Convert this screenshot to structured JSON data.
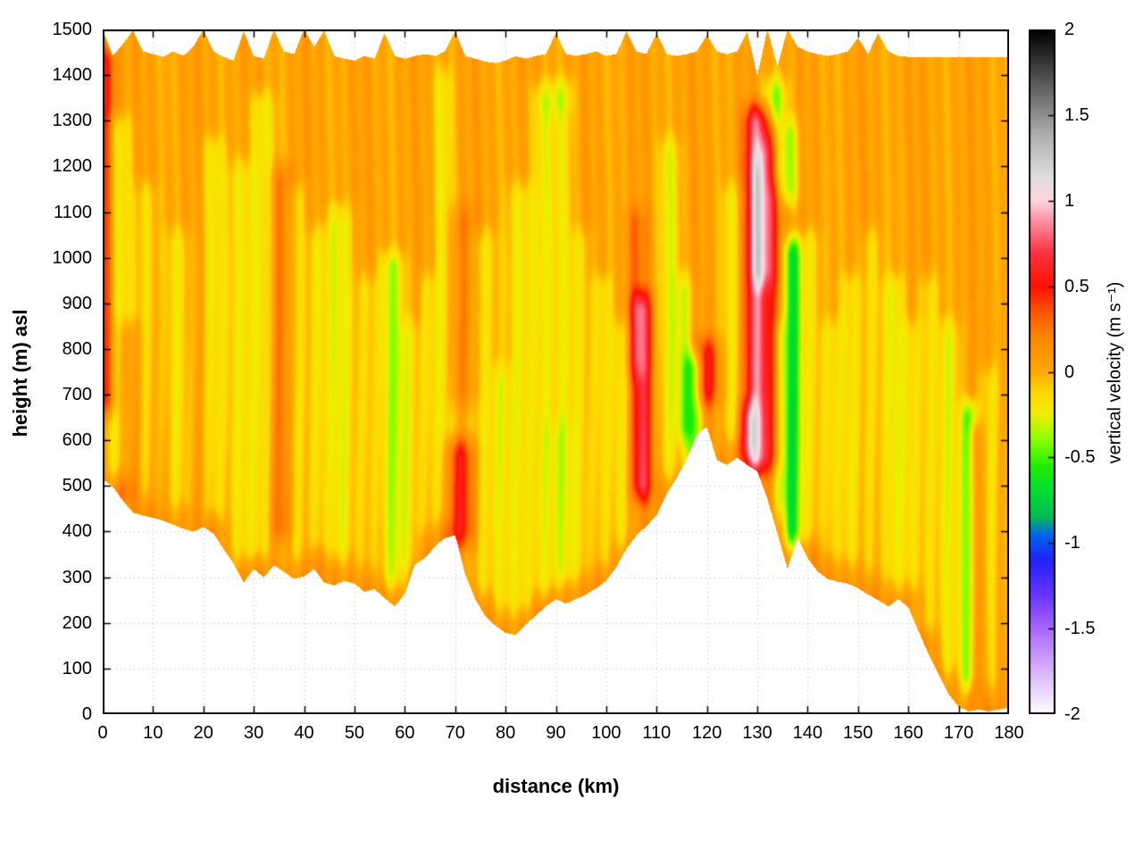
{
  "figure": {
    "background": "#ffffff"
  },
  "chart_data": {
    "type": "heatmap",
    "title": "",
    "xlabel": "distance (km)",
    "ylabel": "height (m) asl",
    "zlabel": "vertical velocity (m s⁻¹)",
    "xlim": [
      0,
      180
    ],
    "ylim": [
      0,
      1500
    ],
    "zlim": [
      -2,
      2
    ],
    "xticks": [
      0,
      10,
      20,
      30,
      40,
      50,
      60,
      70,
      80,
      90,
      100,
      110,
      120,
      130,
      140,
      150,
      160,
      170,
      180
    ],
    "yticks": [
      0,
      100,
      200,
      300,
      400,
      500,
      600,
      700,
      800,
      900,
      1000,
      1100,
      1200,
      1300,
      1400,
      1500
    ],
    "cticks": [
      -2,
      -1.5,
      -1,
      -0.5,
      0,
      0.5,
      1,
      1.5,
      2
    ],
    "grid": true,
    "grid_color": "#bdbdbd",
    "border_color": "#000000",
    "palette": [
      [
        -2.0,
        "#ffffff"
      ],
      [
        -1.75,
        "#d9b3ff"
      ],
      [
        -1.5,
        "#aa66ff"
      ],
      [
        -1.3,
        "#6633ff"
      ],
      [
        -1.1,
        "#2222ff"
      ],
      [
        -0.95,
        "#0066ee"
      ],
      [
        -0.85,
        "#00bb55"
      ],
      [
        -0.7,
        "#00dd33"
      ],
      [
        -0.55,
        "#22ee00"
      ],
      [
        -0.4,
        "#88ff00"
      ],
      [
        -0.25,
        "#f0ee00"
      ],
      [
        -0.12,
        "#ffd700"
      ],
      [
        0.0,
        "#ffaa00"
      ],
      [
        0.2,
        "#ff8800"
      ],
      [
        0.35,
        "#ff5500"
      ],
      [
        0.5,
        "#ff1100"
      ],
      [
        0.7,
        "#ff3344"
      ],
      [
        0.9,
        "#ff99aa"
      ],
      [
        1.0,
        "#ffd5e0"
      ],
      [
        1.15,
        "#dddddd"
      ],
      [
        1.4,
        "#aaaaaa"
      ],
      [
        1.7,
        "#555555"
      ],
      [
        2.0,
        "#000000"
      ]
    ],
    "base_value": 0.04,
    "texture_amp": 0.05,
    "surface_layer_amp": 0.08,
    "surface_layer_depth": 160,
    "profile_step": 2,
    "terrain": [
      515,
      498,
      468,
      442,
      435,
      430,
      424,
      415,
      406,
      400,
      410,
      396,
      362,
      330,
      288,
      318,
      300,
      326,
      312,
      296,
      302,
      318,
      288,
      282,
      292,
      286,
      268,
      274,
      254,
      236,
      264,
      328,
      342,
      368,
      386,
      392,
      306,
      252,
      214,
      194,
      178,
      174,
      196,
      216,
      236,
      252,
      242,
      252,
      262,
      276,
      292,
      322,
      362,
      392,
      412,
      436,
      482,
      518,
      558,
      612,
      630,
      556,
      546,
      562,
      546,
      532,
      472,
      396,
      318,
      386,
      342,
      312,
      296,
      290,
      286,
      276,
      262,
      250,
      236,
      252,
      234,
      182,
      132,
      88,
      44,
      16,
      6,
      10,
      6,
      10,
      14
    ],
    "top": [
      1500,
      1442,
      1468,
      1498,
      1452,
      1446,
      1440,
      1452,
      1442,
      1462,
      1500,
      1452,
      1440,
      1432,
      1496,
      1442,
      1436,
      1500,
      1452,
      1446,
      1500,
      1462,
      1498,
      1442,
      1436,
      1432,
      1442,
      1436,
      1492,
      1442,
      1436,
      1442,
      1446,
      1442,
      1452,
      1496,
      1442,
      1436,
      1430,
      1426,
      1432,
      1442,
      1436,
      1442,
      1446,
      1492,
      1446,
      1442,
      1446,
      1452,
      1442,
      1446,
      1496,
      1452,
      1446,
      1492,
      1446,
      1442,
      1446,
      1452,
      1488,
      1452,
      1446,
      1452,
      1496,
      1398,
      1500,
      1420,
      1500,
      1462,
      1452,
      1446,
      1442,
      1446,
      1452,
      1482,
      1446,
      1492,
      1452,
      1442,
      1440,
      1440,
      1440,
      1440,
      1440,
      1440,
      1440,
      1440,
      1440,
      1440,
      1438
    ],
    "features": [
      {
        "x": 0.6,
        "z0": 620,
        "z1": 1500,
        "w": 1.4,
        "a": 0.5
      },
      {
        "x": 5,
        "z0": 420,
        "z1": 900,
        "w": 1.8,
        "a": 0.22
      },
      {
        "x": 35.5,
        "z0": 340,
        "z1": 1240,
        "w": 1.6,
        "a": 0.28
      },
      {
        "x": 71,
        "z0": 330,
        "z1": 640,
        "w": 2.0,
        "a": 0.5
      },
      {
        "x": 71.5,
        "z0": 640,
        "z1": 1150,
        "w": 2.2,
        "a": 0.18
      },
      {
        "x": 107,
        "z0": 430,
        "z1": 960,
        "w": 1.4,
        "a": 0.62
      },
      {
        "x": 106,
        "z0": 700,
        "z1": 1150,
        "w": 1.6,
        "a": 0.22
      },
      {
        "x": 120,
        "z0": 640,
        "z1": 860,
        "w": 1.8,
        "a": 0.45
      },
      {
        "x": 130,
        "z0": 490,
        "z1": 1370,
        "w": 1.8,
        "a": 0.75
      },
      {
        "x": 130,
        "z0": 900,
        "z1": 1250,
        "w": 0.9,
        "a": 0.2
      },
      {
        "x": 128.5,
        "z0": 520,
        "z1": 720,
        "w": 1.4,
        "a": 0.4
      },
      {
        "x": 131.5,
        "z0": 900,
        "z1": 1300,
        "w": 1.6,
        "a": 0.3
      },
      {
        "x": 133.5,
        "z0": 500,
        "z1": 1200,
        "w": 1.2,
        "a": 0.25
      },
      {
        "x": 90.5,
        "z0": 600,
        "z1": 1350,
        "w": 2.0,
        "a": 0.12
      },
      {
        "x": 173.2,
        "z0": 0,
        "z1": 680,
        "w": 1.0,
        "a": 0.35
      },
      {
        "x": 117.3,
        "z0": 500,
        "z1": 830,
        "w": 1.2,
        "a": -0.6
      },
      {
        "x": 137,
        "z0": 330,
        "z1": 1080,
        "w": 1.2,
        "a": -0.7
      },
      {
        "x": 136.2,
        "z0": 1080,
        "z1": 1340,
        "w": 1.4,
        "a": -0.4
      },
      {
        "x": 172.1,
        "z0": 10,
        "z1": 720,
        "w": 1.1,
        "a": -0.62
      },
      {
        "x": 133.6,
        "z0": 1260,
        "z1": 1430,
        "w": 1.6,
        "a": -0.4
      },
      {
        "x": 3,
        "z0": 480,
        "z1": 1350,
        "w": 2.0,
        "a": -0.3
      },
      {
        "x": 8.5,
        "z0": 430,
        "z1": 1200,
        "w": 1.6,
        "a": -0.22
      },
      {
        "x": 15,
        "z0": 410,
        "z1": 1100,
        "w": 1.8,
        "a": -0.2
      },
      {
        "x": 22,
        "z0": 390,
        "z1": 1300,
        "w": 1.6,
        "a": -0.25
      },
      {
        "x": 27.5,
        "z0": 300,
        "z1": 1250,
        "w": 1.8,
        "a": -0.22
      },
      {
        "x": 31.5,
        "z0": 300,
        "z1": 1400,
        "w": 1.8,
        "a": -0.28
      },
      {
        "x": 38.5,
        "z0": 300,
        "z1": 1200,
        "w": 1.5,
        "a": -0.2
      },
      {
        "x": 42.5,
        "z0": 320,
        "z1": 1100,
        "w": 1.5,
        "a": -0.22
      },
      {
        "x": 47,
        "z0": 300,
        "z1": 1150,
        "w": 2.0,
        "a": -0.28
      },
      {
        "x": 52.5,
        "z0": 270,
        "z1": 1000,
        "w": 1.6,
        "a": -0.2
      },
      {
        "x": 57.5,
        "z0": 240,
        "z1": 1050,
        "w": 1.8,
        "a": -0.35
      },
      {
        "x": 61,
        "z0": 280,
        "z1": 900,
        "w": 1.4,
        "a": -0.2
      },
      {
        "x": 64.5,
        "z0": 350,
        "z1": 1000,
        "w": 1.4,
        "a": -0.2
      },
      {
        "x": 67.5,
        "z0": 380,
        "z1": 1450,
        "w": 1.4,
        "a": -0.22
      },
      {
        "x": 75.5,
        "z0": 220,
        "z1": 1100,
        "w": 1.8,
        "a": -0.25
      },
      {
        "x": 79,
        "z0": 180,
        "z1": 800,
        "w": 1.4,
        "a": -0.2
      },
      {
        "x": 83,
        "z0": 180,
        "z1": 1200,
        "w": 1.8,
        "a": -0.25
      },
      {
        "x": 87.5,
        "z0": 220,
        "z1": 1420,
        "w": 1.8,
        "a": -0.3
      },
      {
        "x": 91.5,
        "z0": 250,
        "z1": 1430,
        "w": 1.6,
        "a": -0.28
      },
      {
        "x": 95,
        "z0": 255,
        "z1": 1100,
        "w": 1.5,
        "a": -0.2
      },
      {
        "x": 99,
        "z0": 280,
        "z1": 1000,
        "w": 1.5,
        "a": -0.22
      },
      {
        "x": 103,
        "z0": 330,
        "z1": 900,
        "w": 1.4,
        "a": -0.2
      },
      {
        "x": 112.5,
        "z0": 480,
        "z1": 1300,
        "w": 1.6,
        "a": -0.25
      },
      {
        "x": 115.5,
        "z0": 560,
        "z1": 1000,
        "w": 1.2,
        "a": -0.3
      },
      {
        "x": 125,
        "z0": 560,
        "z1": 1200,
        "w": 1.5,
        "a": -0.22
      },
      {
        "x": 134.5,
        "z0": 400,
        "z1": 900,
        "w": 1.0,
        "a": -0.25
      },
      {
        "x": 140.5,
        "z0": 340,
        "z1": 1100,
        "w": 1.5,
        "a": -0.25
      },
      {
        "x": 144.5,
        "z0": 300,
        "z1": 900,
        "w": 1.4,
        "a": -0.2
      },
      {
        "x": 148.5,
        "z0": 290,
        "z1": 1000,
        "w": 1.5,
        "a": -0.22
      },
      {
        "x": 152.5,
        "z0": 260,
        "z1": 1100,
        "w": 1.5,
        "a": -0.2
      },
      {
        "x": 157,
        "z0": 240,
        "z1": 1000,
        "w": 1.6,
        "a": -0.25
      },
      {
        "x": 160.5,
        "z0": 240,
        "z1": 900,
        "w": 1.4,
        "a": -0.2
      },
      {
        "x": 164,
        "z0": 140,
        "z1": 1000,
        "w": 1.5,
        "a": -0.22
      },
      {
        "x": 168,
        "z0": 50,
        "z1": 900,
        "w": 1.5,
        "a": -0.25
      },
      {
        "x": 176,
        "z0": 10,
        "z1": 800,
        "w": 1.4,
        "a": -0.22
      }
    ]
  }
}
